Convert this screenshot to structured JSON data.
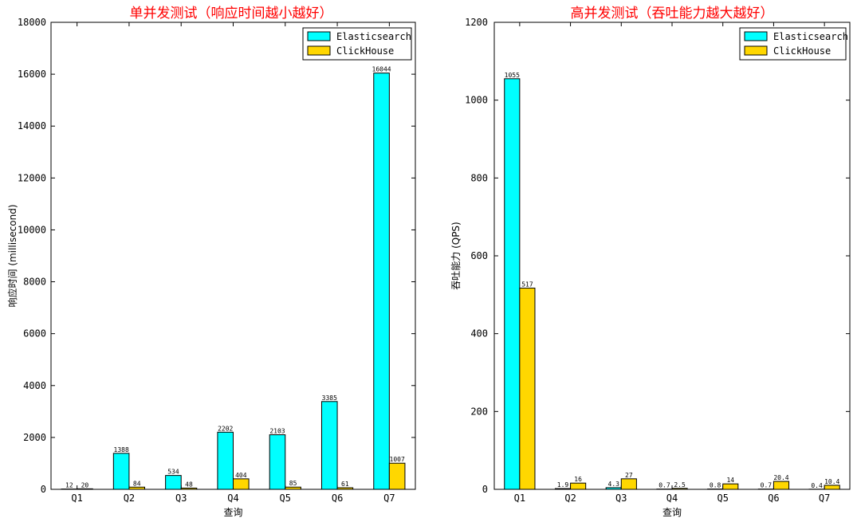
{
  "chart_data": [
    {
      "type": "bar",
      "title": "单并发测试（响应时间越小越好）",
      "xlabel": "查询",
      "ylabel": "响应时间 (millisecond)",
      "ylim": [
        0,
        18000
      ],
      "yticks": [
        0,
        2000,
        4000,
        6000,
        8000,
        10000,
        12000,
        14000,
        16000,
        18000
      ],
      "categories": [
        "Q1",
        "Q2",
        "Q3",
        "Q4",
        "Q5",
        "Q6",
        "Q7"
      ],
      "series": [
        {
          "name": "Elasticsearch",
          "color": "#00ffff",
          "values": [
            12,
            1388,
            534,
            2202,
            2103,
            3385,
            16044
          ],
          "labels": [
            "12",
            "1388",
            "534",
            "2202",
            "2103",
            "3385",
            "16044"
          ]
        },
        {
          "name": "ClickHouse",
          "color": "#ffd700",
          "values": [
            20,
            84,
            48,
            404,
            85,
            61,
            1007
          ],
          "labels": [
            "20",
            "84",
            "48",
            "404",
            "85",
            "61",
            "1007"
          ]
        }
      ],
      "legend": "top-right",
      "grid": false
    },
    {
      "type": "bar",
      "title": "高并发测试（吞吐能力越大越好）",
      "xlabel": "查询",
      "ylabel": "吞吐能力 (QPS)",
      "ylim": [
        0,
        1200
      ],
      "yticks": [
        0,
        200,
        400,
        600,
        800,
        1000,
        1200
      ],
      "categories": [
        "Q1",
        "Q2",
        "Q3",
        "Q4",
        "Q5",
        "Q6",
        "Q7"
      ],
      "series": [
        {
          "name": "Elasticsearch",
          "color": "#00ffff",
          "values": [
            1055,
            1.9,
            4.3,
            0.7,
            0.8,
            0.7,
            0.4
          ],
          "labels": [
            "1055",
            "1.9",
            "4.3",
            "0.7",
            "0.8",
            "0.7",
            "0.4"
          ]
        },
        {
          "name": "ClickHouse",
          "color": "#ffd700",
          "values": [
            517,
            16,
            27,
            2.5,
            14,
            20.4,
            10.4
          ],
          "labels": [
            "517",
            "16",
            "27",
            "2.5",
            "14",
            "20.4",
            "10.4"
          ]
        }
      ],
      "legend": "top-right",
      "grid": false
    }
  ]
}
